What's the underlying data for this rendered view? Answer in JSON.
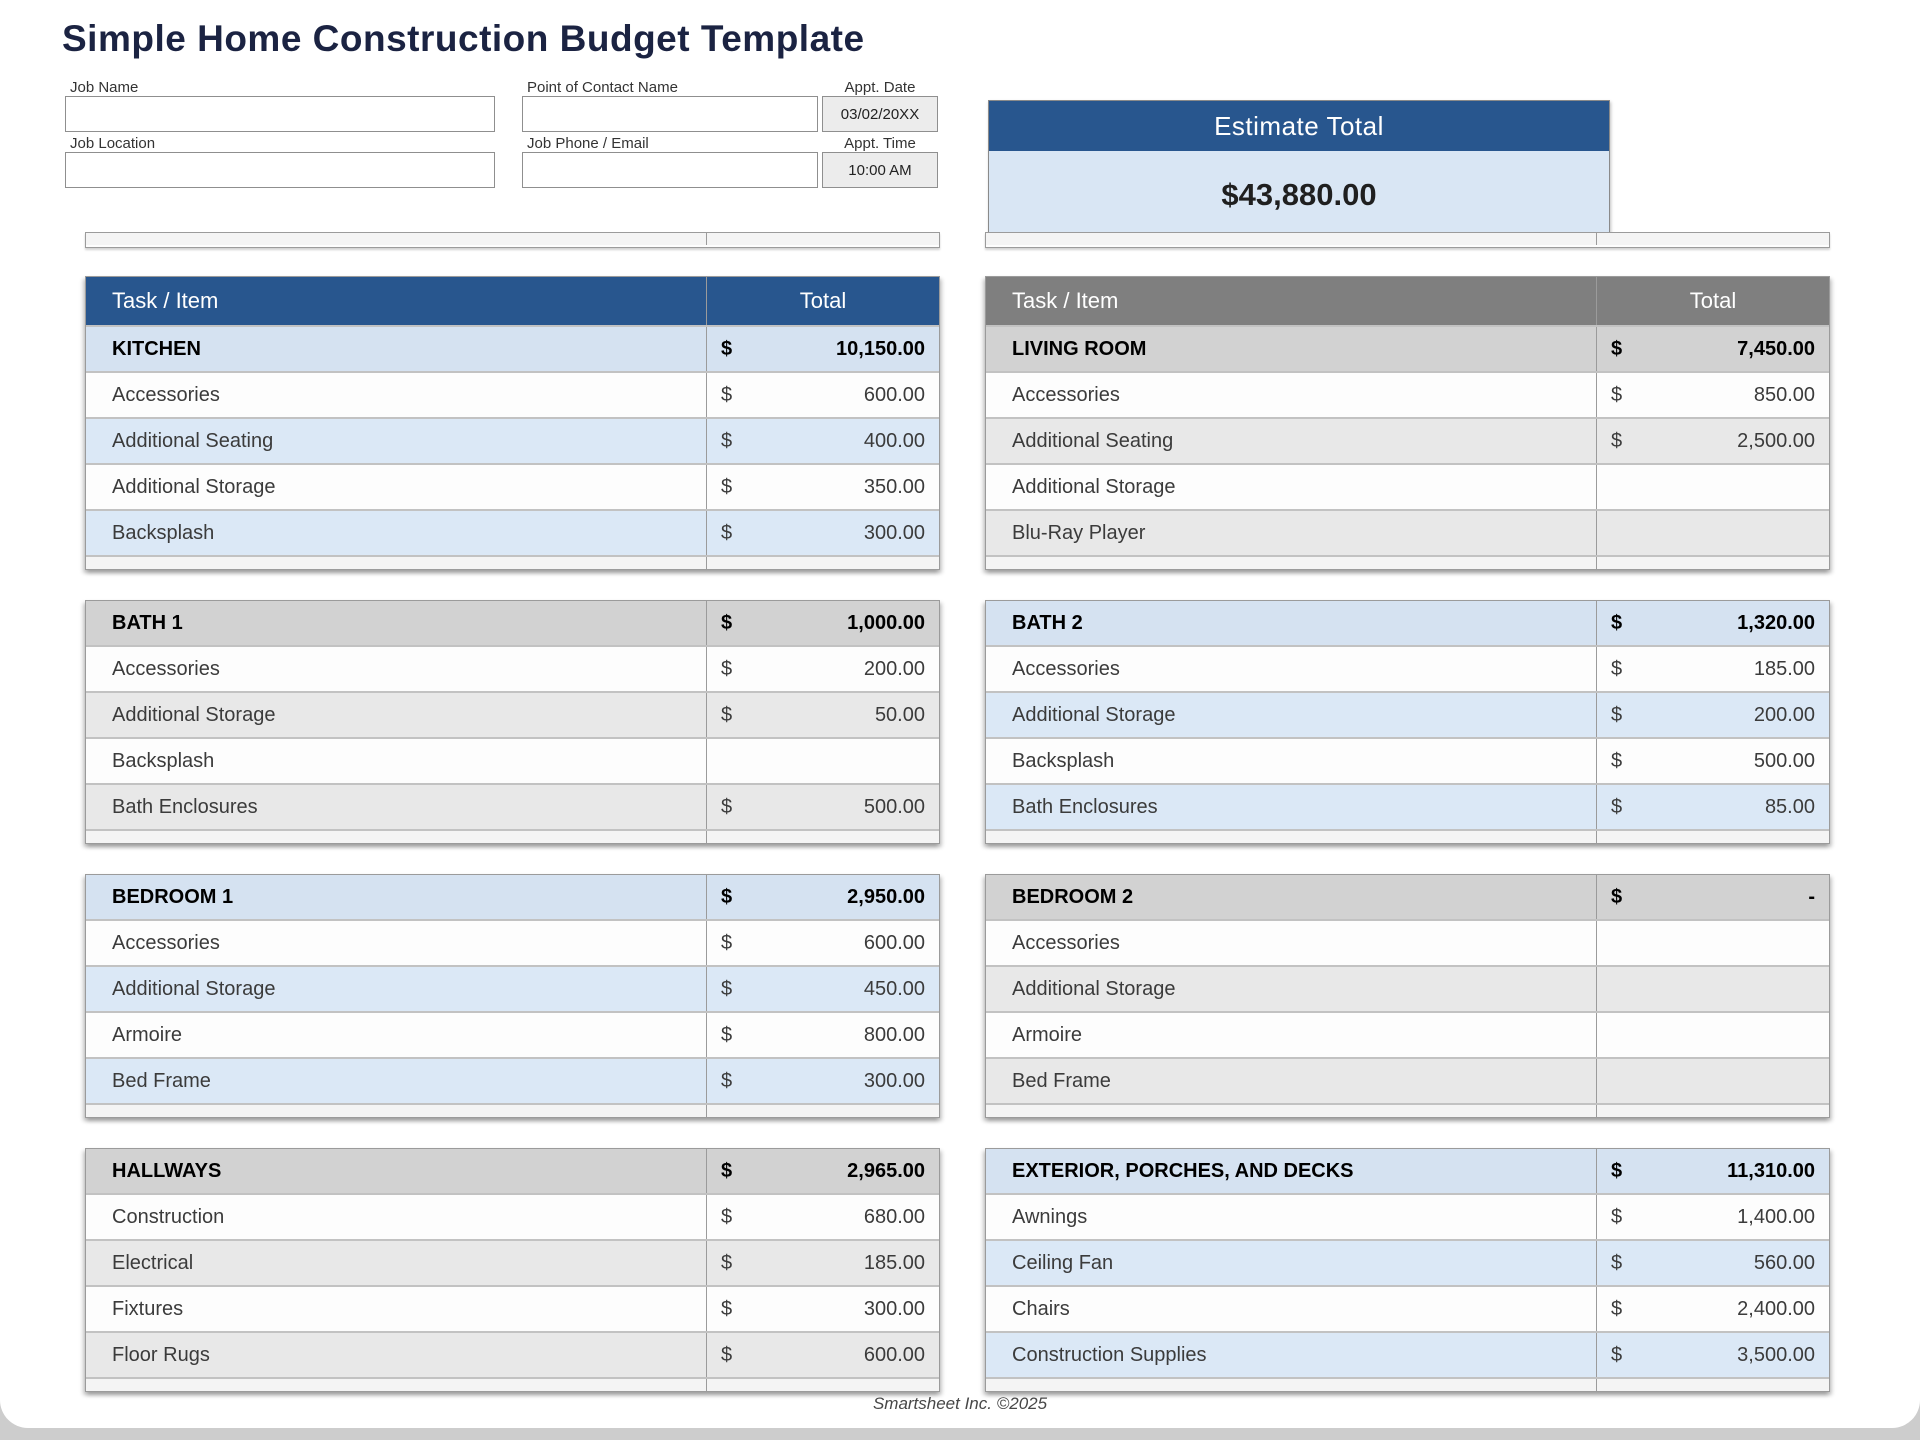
{
  "page": {
    "title": "Simple Home Construction Budget Template",
    "footer": "Smartsheet Inc. ©2025"
  },
  "form": {
    "job_name_label": "Job Name",
    "job_name_value": "",
    "job_location_label": "Job Location",
    "job_location_value": "",
    "contact_name_label": "Point of Contact Name",
    "contact_name_value": "",
    "phone_email_label": "Job Phone / Email",
    "phone_email_value": "",
    "appt_date_label": "Appt. Date",
    "appt_date_value": "03/02/20XX",
    "appt_time_label": "Appt. Time",
    "appt_time_value": "10:00 AM"
  },
  "estimate": {
    "header": "Estimate Total",
    "value": "$43,880.00"
  },
  "tables": {
    "column_header": {
      "task": "Task / Item",
      "total": "Total"
    },
    "left": [
      {
        "name": "KITCHEN",
        "theme": "blue",
        "has_column_header": true,
        "total": {
          "currency": "$",
          "amount": "10,150.00"
        },
        "rows": [
          {
            "label": "Accessories",
            "currency": "$",
            "amount": "600.00"
          },
          {
            "label": "Additional Seating",
            "currency": "$",
            "amount": "400.00"
          },
          {
            "label": "Additional Storage",
            "currency": "$",
            "amount": "350.00"
          },
          {
            "label": "Backsplash",
            "currency": "$",
            "amount": "300.00"
          }
        ]
      },
      {
        "name": "BATH 1",
        "theme": "gray",
        "has_column_header": false,
        "total": {
          "currency": "$",
          "amount": "1,000.00"
        },
        "rows": [
          {
            "label": "Accessories",
            "currency": "$",
            "amount": "200.00"
          },
          {
            "label": "Additional Storage",
            "currency": "$",
            "amount": "50.00"
          },
          {
            "label": "Backsplash",
            "currency": "",
            "amount": ""
          },
          {
            "label": "Bath Enclosures",
            "currency": "$",
            "amount": "500.00"
          }
        ]
      },
      {
        "name": "BEDROOM 1",
        "theme": "blue",
        "has_column_header": false,
        "total": {
          "currency": "$",
          "amount": "2,950.00"
        },
        "rows": [
          {
            "label": "Accessories",
            "currency": "$",
            "amount": "600.00"
          },
          {
            "label": "Additional Storage",
            "currency": "$",
            "amount": "450.00"
          },
          {
            "label": "Armoire",
            "currency": "$",
            "amount": "800.00"
          },
          {
            "label": "Bed Frame",
            "currency": "$",
            "amount": "300.00"
          }
        ]
      },
      {
        "name": "HALLWAYS",
        "theme": "gray",
        "has_column_header": false,
        "total": {
          "currency": "$",
          "amount": "2,965.00"
        },
        "rows": [
          {
            "label": "Construction",
            "currency": "$",
            "amount": "680.00"
          },
          {
            "label": "Electrical",
            "currency": "$",
            "amount": "185.00"
          },
          {
            "label": "Fixtures",
            "currency": "$",
            "amount": "300.00"
          },
          {
            "label": "Floor Rugs",
            "currency": "$",
            "amount": "600.00"
          }
        ]
      }
    ],
    "right": [
      {
        "name": "LIVING ROOM",
        "theme": "gray",
        "has_column_header": true,
        "total": {
          "currency": "$",
          "amount": "7,450.00"
        },
        "rows": [
          {
            "label": "Accessories",
            "currency": "$",
            "amount": "850.00"
          },
          {
            "label": "Additional Seating",
            "currency": "$",
            "amount": "2,500.00"
          },
          {
            "label": "Additional Storage",
            "currency": "",
            "amount": ""
          },
          {
            "label": "Blu-Ray Player",
            "currency": "",
            "amount": ""
          }
        ]
      },
      {
        "name": "BATH 2",
        "theme": "blue",
        "has_column_header": false,
        "total": {
          "currency": "$",
          "amount": "1,320.00"
        },
        "rows": [
          {
            "label": "Accessories",
            "currency": "$",
            "amount": "185.00"
          },
          {
            "label": "Additional Storage",
            "currency": "$",
            "amount": "200.00"
          },
          {
            "label": "Backsplash",
            "currency": "$",
            "amount": "500.00"
          },
          {
            "label": "Bath Enclosures",
            "currency": "$",
            "amount": "85.00"
          }
        ]
      },
      {
        "name": "BEDROOM 2",
        "theme": "gray",
        "has_column_header": false,
        "total": {
          "currency": "$",
          "amount": "-"
        },
        "rows": [
          {
            "label": "Accessories",
            "currency": "",
            "amount": ""
          },
          {
            "label": "Additional Storage",
            "currency": "",
            "amount": ""
          },
          {
            "label": "Armoire",
            "currency": "",
            "amount": ""
          },
          {
            "label": "Bed Frame",
            "currency": "",
            "amount": ""
          }
        ]
      },
      {
        "name": "EXTERIOR, PORCHES, AND DECKS",
        "theme": "blue",
        "has_column_header": false,
        "total": {
          "currency": "$",
          "amount": "11,310.00"
        },
        "rows": [
          {
            "label": "Awnings",
            "currency": "$",
            "amount": "1,400.00"
          },
          {
            "label": "Ceiling Fan",
            "currency": "$",
            "amount": "560.00"
          },
          {
            "label": "Chairs",
            "currency": "$",
            "amount": "2,400.00"
          },
          {
            "label": "Construction Supplies",
            "currency": "$",
            "amount": "3,500.00"
          }
        ]
      }
    ]
  },
  "colors": {
    "title_color": "#1b2342",
    "accent_blue": "#28568e",
    "accent_gray": "#7f7f7f",
    "section_blue": "#d5e2f1",
    "light_blue": "#dbe8f6",
    "section_gray": "#d2d2d2",
    "light_gray": "#e8e8e8",
    "estimate_header_bg": "#28568e",
    "estimate_body_bg": "#d9e6f4"
  }
}
